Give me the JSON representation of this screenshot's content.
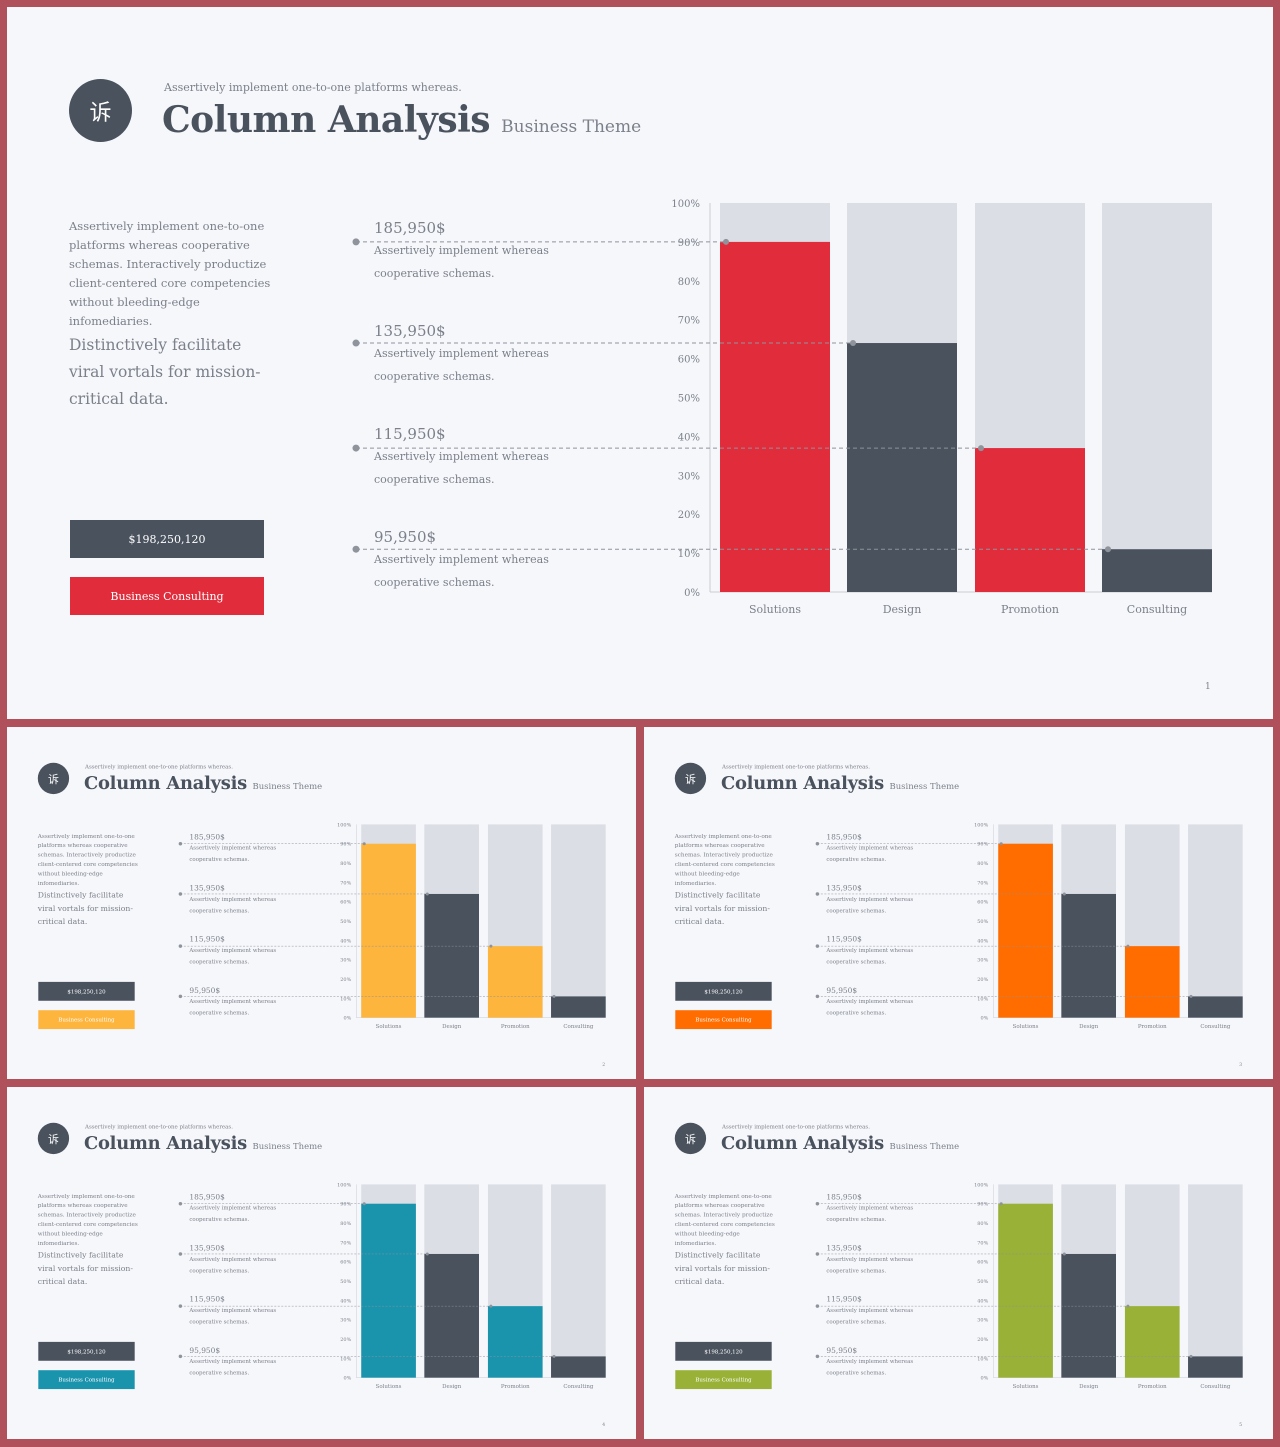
{
  "slides": [
    {
      "page_number": "1",
      "accent_color": "#e12c3c",
      "logo_glyph": "诉",
      "tagline": "Assertively implement one-to-one platforms whereas.",
      "title": "Column Analysis",
      "subtitle": "Business Theme",
      "intro_text": "Assertively implement one-to-one platforms whereas cooperative schemas. Interactively productize client-centered core competencies without bleeding-edge infomediaries.",
      "highlight_text": "Distinctively facilitate viral vortals for mission-critical data.",
      "total_label": "$198,250,120",
      "cta_label": "Business Consulting",
      "value_items": [
        {
          "amount": "185,950$",
          "desc": "Assertively implement whereas cooperative schemas."
        },
        {
          "amount": "135,950$",
          "desc": "Assertively implement whereas cooperative schemas."
        },
        {
          "amount": "115,950$",
          "desc": "Assertively implement whereas cooperative schemas."
        },
        {
          "amount": "95,950$",
          "desc": "Assertively implement whereas cooperative schemas."
        }
      ]
    },
    {
      "page_number": "2",
      "accent_color": "#fdb53e",
      "logo_glyph": "诉",
      "tagline": "Assertively implement one-to-one platforms whereas.",
      "title": "Column Analysis",
      "subtitle": "Business Theme",
      "intro_text": "Assertively implement one-to-one platforms whereas cooperative schemas. Interactively productize client-centered core competencies without bleeding-edge infomediaries.",
      "highlight_text": "Distinctively facilitate viral vortals for mission-critical data.",
      "total_label": "$198,250,120",
      "cta_label": "Business Consulting",
      "value_items": [
        {
          "amount": "185,950$",
          "desc": "Assertively implement whereas cooperative schemas."
        },
        {
          "amount": "135,950$",
          "desc": "Assertively implement whereas cooperative schemas."
        },
        {
          "amount": "115,950$",
          "desc": "Assertively implement whereas cooperative schemas."
        },
        {
          "amount": "95,950$",
          "desc": "Assertively implement whereas cooperative schemas."
        }
      ]
    },
    {
      "page_number": "3",
      "accent_color": "#ff6d00",
      "logo_glyph": "诉",
      "tagline": "Assertively implement one-to-one platforms whereas.",
      "title": "Column Analysis",
      "subtitle": "Business Theme",
      "intro_text": "Assertively implement one-to-one platforms whereas cooperative schemas. Interactively productize client-centered core competencies without bleeding-edge infomediaries.",
      "highlight_text": "Distinctively facilitate viral vortals for mission-critical data.",
      "total_label": "$198,250,120",
      "cta_label": "Business Consulting",
      "value_items": [
        {
          "amount": "185,950$",
          "desc": "Assertively implement whereas cooperative schemas."
        },
        {
          "amount": "135,950$",
          "desc": "Assertively implement whereas cooperative schemas."
        },
        {
          "amount": "115,950$",
          "desc": "Assertively implement whereas cooperative schemas."
        },
        {
          "amount": "95,950$",
          "desc": "Assertively implement whereas cooperative schemas."
        }
      ]
    },
    {
      "page_number": "4",
      "accent_color": "#1a93ad",
      "logo_glyph": "诉",
      "tagline": "Assertively implement one-to-one platforms whereas.",
      "title": "Column Analysis",
      "subtitle": "Business Theme",
      "intro_text": "Assertively implement one-to-one platforms whereas cooperative schemas. Interactively productize client-centered core competencies without bleeding-edge infomediaries.",
      "highlight_text": "Distinctively facilitate viral vortals for mission-critical data.",
      "total_label": "$198,250,120",
      "cta_label": "Business Consulting",
      "value_items": [
        {
          "amount": "185,950$",
          "desc": "Assertively implement whereas cooperative schemas."
        },
        {
          "amount": "135,950$",
          "desc": "Assertively implement whereas cooperative schemas."
        },
        {
          "amount": "115,950$",
          "desc": "Assertively implement whereas cooperative schemas."
        },
        {
          "amount": "95,950$",
          "desc": "Assertively implement whereas cooperative schemas."
        }
      ]
    },
    {
      "page_number": "5",
      "accent_color": "#98b136",
      "logo_glyph": "诉",
      "tagline": "Assertively implement one-to-one platforms whereas.",
      "title": "Column Analysis",
      "subtitle": "Business Theme",
      "intro_text": "Assertively implement one-to-one platforms whereas cooperative schemas. Interactively productize client-centered core competencies without bleeding-edge infomediaries.",
      "highlight_text": "Distinctively facilitate viral vortals for mission-critical data.",
      "total_label": "$198,250,120",
      "cta_label": "Business Consulting",
      "value_items": [
        {
          "amount": "185,950$",
          "desc": "Assertively implement whereas cooperative schemas."
        },
        {
          "amount": "135,950$",
          "desc": "Assertively implement whereas cooperative schemas."
        },
        {
          "amount": "115,950$",
          "desc": "Assertively implement whereas cooperative schemas."
        },
        {
          "amount": "95,950$",
          "desc": "Assertively implement whereas cooperative schemas."
        }
      ]
    }
  ],
  "chart_data": {
    "type": "bar",
    "categories": [
      "Solutions",
      "Design",
      "Promotion",
      "Consulting"
    ],
    "values": [
      90,
      64,
      37,
      11
    ],
    "ylim": [
      0,
      100
    ],
    "yticks": [
      "0%",
      "10%",
      "20%",
      "30%",
      "40%",
      "50%",
      "60%",
      "70%",
      "80%",
      "90%",
      "100%"
    ],
    "bar_colors": [
      "accent",
      "#4a525d",
      "accent",
      "#4a525d"
    ],
    "background_bar_color": "#dcdee6",
    "grid": false,
    "legend": "none"
  }
}
